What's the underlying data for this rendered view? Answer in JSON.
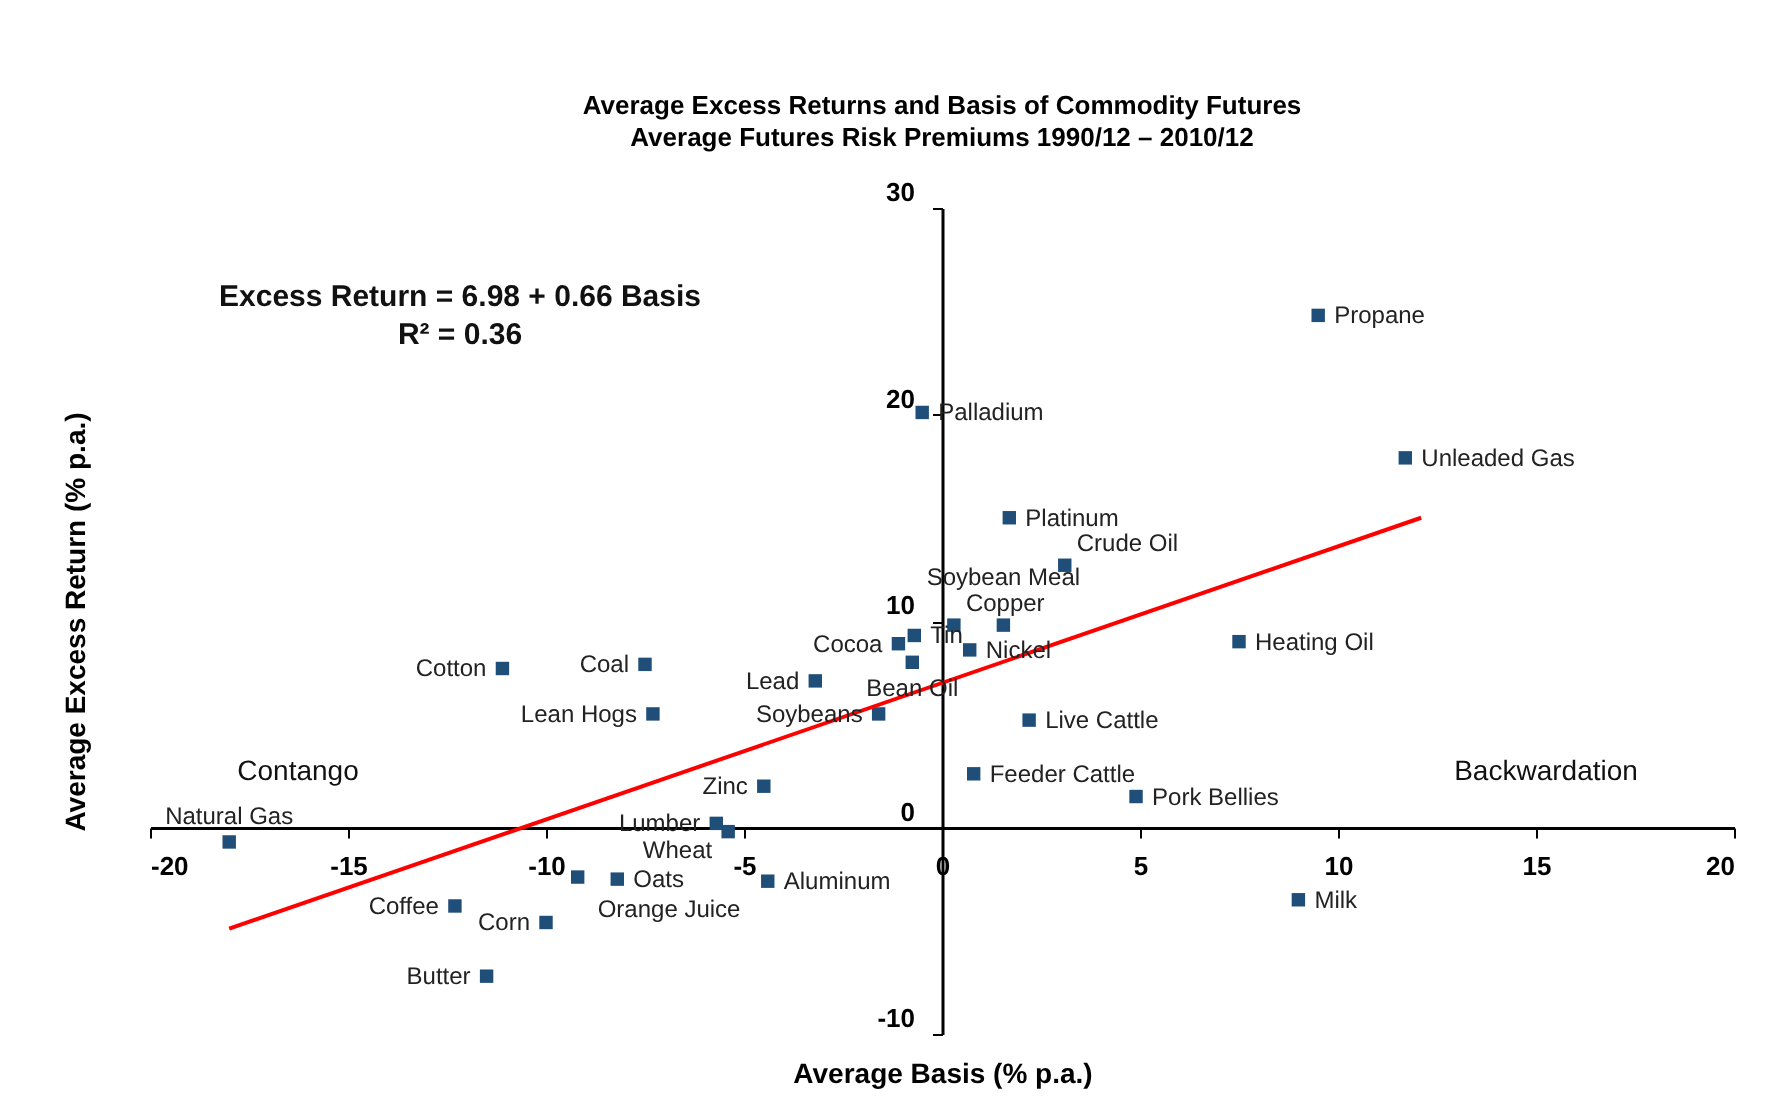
{
  "chart_data": {
    "type": "scatter",
    "title": "Average Excess Returns and Basis of Commodity Futures",
    "subtitle": "Average Futures Risk Premiums 1990/12 – 2010/12",
    "xlabel": "Average Basis (% p.a.)",
    "ylabel": "Average Excess Return (% p.a.)",
    "xlim": [
      -20,
      20
    ],
    "xticks": [
      -20,
      -15,
      -10,
      -5,
      0,
      5,
      10,
      15,
      20
    ],
    "ylim": [
      -10,
      30
    ],
    "yticks": [
      -10,
      0,
      10,
      20,
      30
    ],
    "grid": false,
    "marker": "square",
    "series": [
      {
        "color": "#1f4e79",
        "x": [
          -18.0,
          -11.1,
          -7.5,
          -7.3,
          -3.2,
          -1.1,
          -0.7,
          -0.75,
          -1.6,
          -4.5,
          -5.7,
          -5.4,
          -4.4,
          -8.2,
          -9.2,
          -12.3,
          -10.0,
          -11.5,
          -0.5,
          0.3,
          0.7,
          1.55,
          1.7,
          3.1,
          2.2,
          0.8,
          4.9,
          7.5,
          9.5,
          11.7,
          9.0
        ],
        "values": [
          -0.7,
          7.7,
          7.9,
          5.5,
          7.1,
          8.9,
          9.3,
          8.0,
          5.5,
          2.0,
          0.2,
          -0.2,
          -2.6,
          -2.5,
          -2.4,
          -3.8,
          -4.6,
          -7.2,
          20.1,
          9.8,
          8.6,
          9.8,
          15.0,
          12.7,
          5.2,
          2.6,
          1.5,
          9.0,
          24.8,
          17.9,
          -3.5
        ]
      },
      {
        "type": "line",
        "marker": "none",
        "color": "#ff0000",
        "x": [
          -18.0,
          12.1
        ],
        "values": [
          -4.9,
          15.0
        ]
      }
    ],
    "annotations": [
      "Excess Return = 6.98 + 0.66 Basis",
      "R² = 0.36",
      "Contango",
      "Backwardation",
      {
        "text": "Natural  Gas",
        "x": -18.0,
        "y": -0.7
      },
      {
        "text": "Cotton",
        "x": -11.1,
        "y": 7.7
      },
      {
        "text": "Coal",
        "x": -7.5,
        "y": 7.9
      },
      {
        "text": "Lean Hogs",
        "x": -7.3,
        "y": 5.5
      },
      {
        "text": "Lead",
        "x": -3.2,
        "y": 7.1
      },
      {
        "text": "Cocoa",
        "x": -1.1,
        "y": 8.9
      },
      {
        "text": "Tin",
        "x": -0.7,
        "y": 9.3
      },
      {
        "text": "Bean Oil",
        "x": -0.75,
        "y": 8.0
      },
      {
        "text": "Soybeans",
        "x": -1.6,
        "y": 5.5
      },
      {
        "text": "Zinc",
        "x": -4.5,
        "y": 2.0
      },
      {
        "text": "Lumber",
        "x": -5.7,
        "y": 0.2
      },
      {
        "text": "Wheat",
        "x": -5.4,
        "y": -0.2
      },
      {
        "text": "Aluminum",
        "x": -4.4,
        "y": -2.6
      },
      {
        "text": "Oats",
        "x": -8.2,
        "y": -2.5
      },
      {
        "text": "Orange Juice",
        "x": -9.2,
        "y": -2.4
      },
      {
        "text": "Coffee",
        "x": -12.3,
        "y": -3.8
      },
      {
        "text": "Corn",
        "x": -10.0,
        "y": -4.6
      },
      {
        "text": "Butter",
        "x": -11.5,
        "y": -7.2
      },
      {
        "text": "Palladium",
        "x": -0.5,
        "y": 20.1
      },
      {
        "text": "Copper",
        "x": 0.3,
        "y": 9.8
      },
      {
        "text": "Nickel",
        "x": 0.7,
        "y": 8.6
      },
      {
        "text": "Soybean Meal",
        "x": 1.55,
        "y": 9.8
      },
      {
        "text": "Platinum",
        "x": 1.7,
        "y": 15.0
      },
      {
        "text": "Crude Oil",
        "x": 3.1,
        "y": 12.7
      },
      {
        "text": "Live Cattle",
        "x": 2.2,
        "y": 5.2
      },
      {
        "text": "Feeder Cattle",
        "x": 0.8,
        "y": 2.6
      },
      {
        "text": "Pork Bellies",
        "x": 4.9,
        "y": 1.5
      },
      {
        "text": "Heating Oil",
        "x": 7.5,
        "y": 9.0
      },
      {
        "text": "Propane",
        "x": 9.5,
        "y": 24.8
      },
      {
        "text": "Unleaded Gas",
        "x": 11.7,
        "y": 17.9
      },
      {
        "text": "Milk",
        "x": 9.0,
        "y": -3.5
      }
    ]
  }
}
